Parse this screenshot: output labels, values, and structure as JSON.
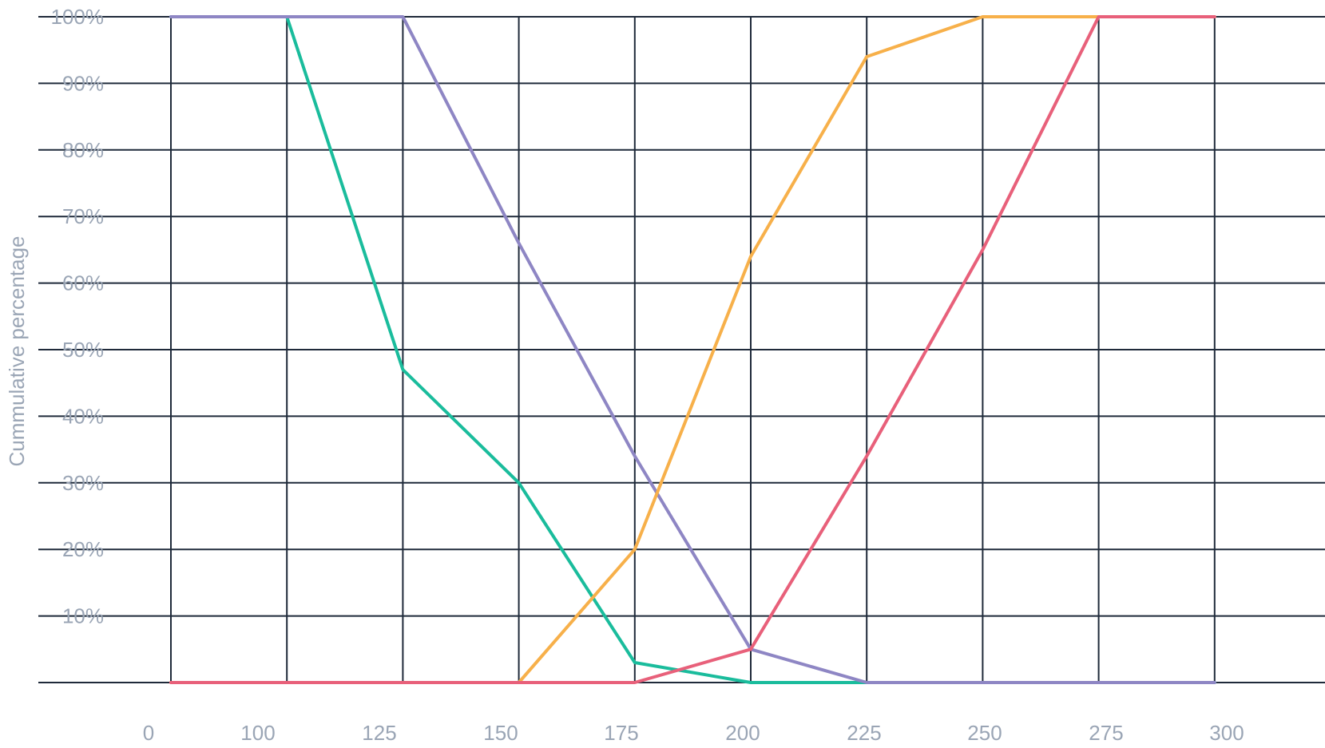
{
  "chart_data": {
    "type": "line",
    "ylabel": "Cummulative percentage",
    "x_tick_labels": [
      "0",
      "100",
      "125",
      "150",
      "175",
      "200",
      "225",
      "250",
      "275",
      "300"
    ],
    "y_tick_labels": [
      "10%",
      "20%",
      "30%",
      "40%",
      "50%",
      "60%",
      "70%",
      "80%",
      "90%",
      "100%"
    ],
    "ylim": [
      0,
      100
    ],
    "grid": true,
    "series": [
      {
        "color": "#1abc9c",
        "points": [
          [
            0,
            100
          ],
          [
            100,
            100
          ],
          [
            125,
            47
          ],
          [
            150,
            30
          ],
          [
            175,
            3
          ],
          [
            200,
            0
          ],
          [
            225,
            0
          ],
          [
            250,
            0
          ],
          [
            275,
            0
          ],
          [
            300,
            0
          ]
        ]
      },
      {
        "color": "#8e86c4",
        "points": [
          [
            0,
            100
          ],
          [
            100,
            100
          ],
          [
            125,
            100
          ],
          [
            150,
            66
          ],
          [
            175,
            34
          ],
          [
            200,
            5
          ],
          [
            225,
            0
          ],
          [
            250,
            0
          ],
          [
            275,
            0
          ],
          [
            300,
            0
          ]
        ]
      },
      {
        "color": "#f7b04a",
        "points": [
          [
            0,
            0
          ],
          [
            100,
            0
          ],
          [
            125,
            0
          ],
          [
            150,
            0
          ],
          [
            175,
            20
          ],
          [
            200,
            64
          ],
          [
            225,
            94
          ],
          [
            250,
            100
          ],
          [
            275,
            100
          ],
          [
            300,
            100
          ]
        ]
      },
      {
        "color": "#e8607a",
        "points": [
          [
            0,
            0
          ],
          [
            100,
            0
          ],
          [
            125,
            0
          ],
          [
            150,
            0
          ],
          [
            175,
            0
          ],
          [
            200,
            5
          ],
          [
            225,
            34
          ],
          [
            250,
            65
          ],
          [
            275,
            100
          ],
          [
            300,
            100
          ]
        ]
      }
    ]
  }
}
